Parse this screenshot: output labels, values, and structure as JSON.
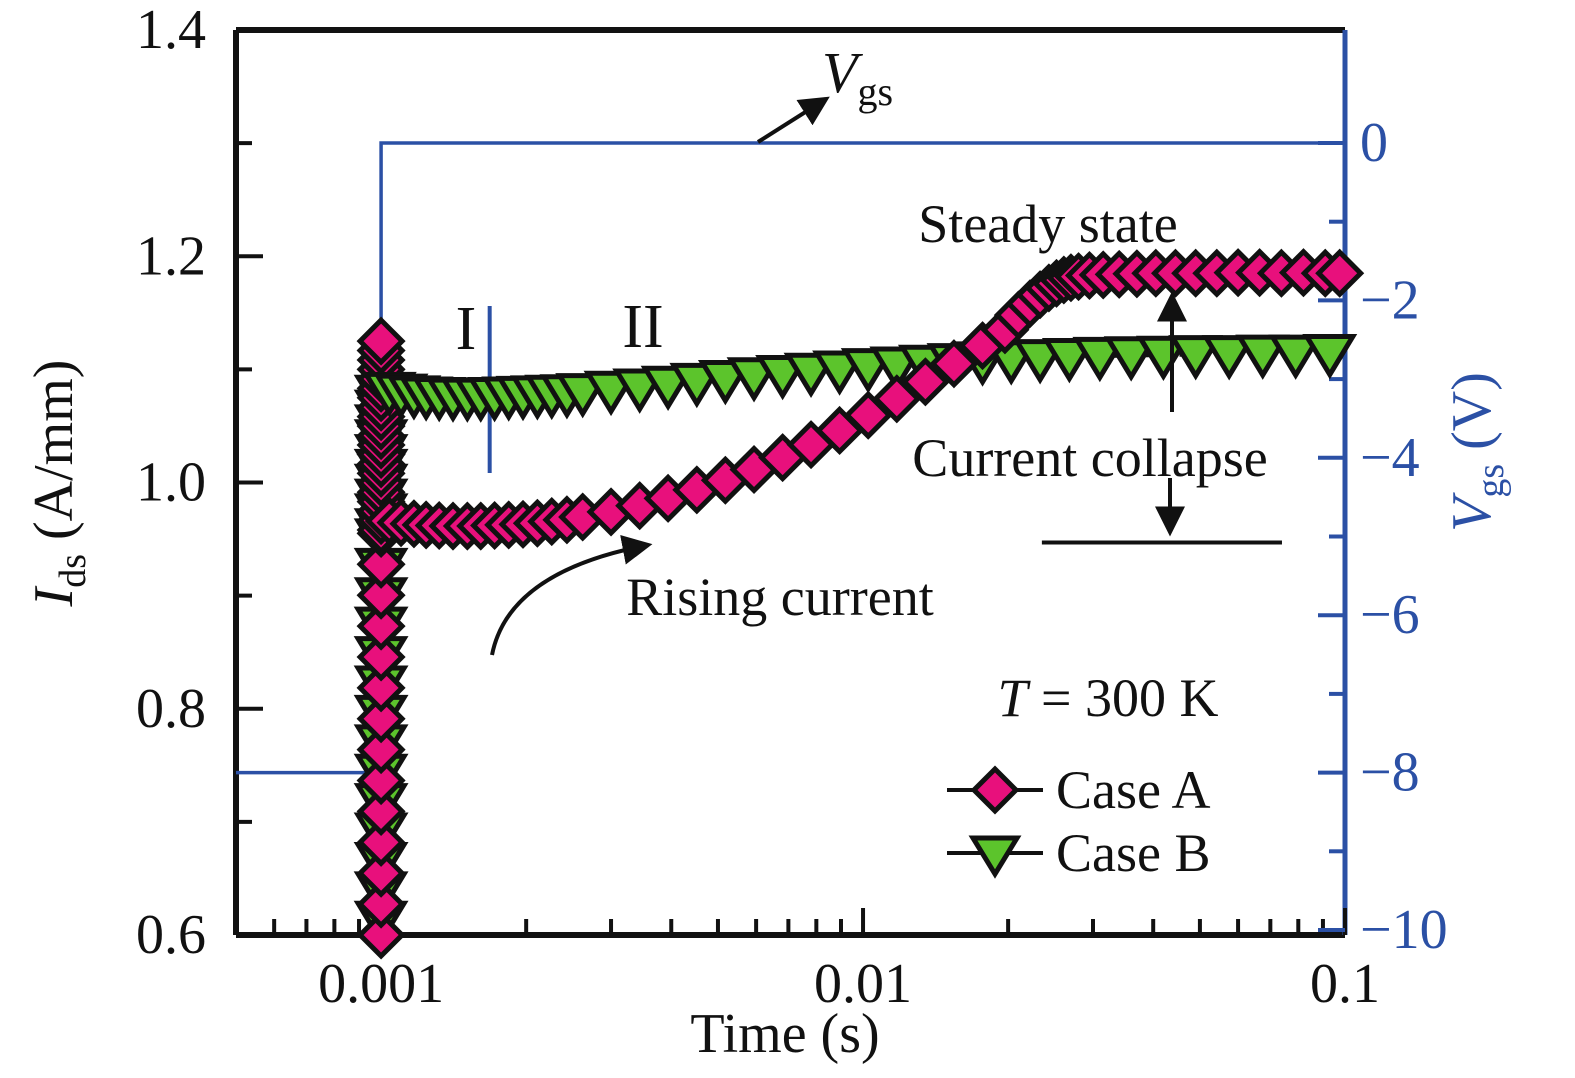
{
  "colors": {
    "case_a_pink": "#E8107C",
    "case_b_green": "#5CC42C",
    "vgs_blue": "#2B50A5",
    "line_black": "#111111",
    "background": "#FFFFFF"
  },
  "axes": {
    "x": {
      "label": "Time (s)",
      "scale": "log",
      "min": 0.0005,
      "max": 0.1,
      "major_ticks": [
        0.001,
        0.01,
        0.1
      ],
      "major_labels": [
        "0.001",
        "0.01",
        "0.1"
      ],
      "minor_ticks": [
        0.0006,
        0.0007,
        0.0008,
        0.0009,
        0.002,
        0.003,
        0.004,
        0.005,
        0.006,
        0.007,
        0.008,
        0.009,
        0.02,
        0.03,
        0.04,
        0.05,
        0.06,
        0.07,
        0.08,
        0.09
      ]
    },
    "y_left": {
      "label_var": "I",
      "label_sub": "ds",
      "label_rest": " (A/mm)",
      "min": 0.6,
      "max": 1.4,
      "major_ticks": [
        0.6,
        0.8,
        1.0,
        1.2,
        1.4
      ],
      "major_labels": [
        "0.6",
        "0.8",
        "1.0",
        "1.2",
        "1.4"
      ],
      "minor_ticks": [
        0.7,
        0.9,
        1.1,
        1.3
      ]
    },
    "y_right": {
      "label_var": "V",
      "label_sub": "gs",
      "label_rest": " (V)",
      "min": -10,
      "max": 0,
      "major_ticks": [
        0,
        -2,
        -4,
        -6,
        -8,
        -10
      ],
      "major_labels": [
        "0",
        "−2",
        "−4",
        "−6",
        "−8",
        "−10"
      ],
      "minor_ticks": [
        -1,
        -3,
        -5,
        -7,
        -9
      ]
    }
  },
  "chart_data": {
    "type": "line",
    "x_scale": "log",
    "x_range": [
      0.0005,
      0.1
    ],
    "y_left_range": [
      0.6,
      1.4
    ],
    "y_right_range": [
      -10,
      0
    ],
    "series": [
      {
        "name": "Case B",
        "axis": "left",
        "marker": "triangle-down",
        "color": "#5CC42C",
        "connector": "dashed",
        "transient_column": {
          "t": 0.001,
          "segments": [
            {
              "from": 0.613,
              "to": 0.951,
              "count": 14
            },
            {
              "from": 0.96,
              "to": 1.078,
              "count": 10
            }
          ]
        },
        "points": [
          [
            0.00104,
            1.0805
          ],
          [
            0.0011,
            1.079
          ],
          [
            0.00117,
            1.0775
          ],
          [
            0.00124,
            1.0765
          ],
          [
            0.00132,
            1.076
          ],
          [
            0.00141,
            1.0755
          ],
          [
            0.00151,
            1.0755
          ],
          [
            0.00161,
            1.0755
          ],
          [
            0.00172,
            1.076
          ],
          [
            0.00184,
            1.0765
          ],
          [
            0.00197,
            1.077
          ],
          [
            0.00211,
            1.0775
          ],
          [
            0.00226,
            1.078
          ],
          [
            0.00243,
            1.0785
          ],
          [
            0.00262,
            1.0795
          ],
          [
            0.003,
            1.0815
          ],
          [
            0.00344,
            1.0835
          ],
          [
            0.00394,
            1.086
          ],
          [
            0.00452,
            1.0885
          ],
          [
            0.00518,
            1.091
          ],
          [
            0.00594,
            1.0935
          ],
          [
            0.00681,
            1.0955
          ],
          [
            0.0078,
            1.0975
          ],
          [
            0.00894,
            1.0995
          ],
          [
            0.01025,
            1.1015
          ],
          [
            0.01175,
            1.103
          ],
          [
            0.01347,
            1.1045
          ],
          [
            0.01544,
            1.106
          ],
          [
            0.0177,
            1.1075
          ],
          [
            0.0203,
            1.1085
          ],
          [
            0.0233,
            1.1095
          ],
          [
            0.0268,
            1.1105
          ],
          [
            0.031,
            1.1115
          ],
          [
            0.036,
            1.112
          ],
          [
            0.042,
            1.1125
          ],
          [
            0.049,
            1.113
          ],
          [
            0.0575,
            1.113
          ],
          [
            0.0675,
            1.1135
          ],
          [
            0.079,
            1.1135
          ],
          [
            0.093,
            1.114
          ]
        ]
      },
      {
        "name": "Case A",
        "axis": "left",
        "marker": "diamond",
        "color": "#E8107C",
        "connector": "dashed",
        "transient_column": {
          "t": 0.001,
          "segments": [
            {
              "from": 0.6,
              "to": 0.955,
              "count": 14
            },
            {
              "from": 0.958,
              "to": 1.125,
              "count": 21
            }
          ]
        },
        "points": [
          [
            0.00104,
            0.966
          ],
          [
            0.0011,
            0.9645
          ],
          [
            0.00117,
            0.9635
          ],
          [
            0.00124,
            0.9625
          ],
          [
            0.00132,
            0.962
          ],
          [
            0.00141,
            0.9615
          ],
          [
            0.00151,
            0.9615
          ],
          [
            0.00161,
            0.9615
          ],
          [
            0.00172,
            0.962
          ],
          [
            0.00184,
            0.9625
          ],
          [
            0.00197,
            0.963
          ],
          [
            0.00211,
            0.964
          ],
          [
            0.00226,
            0.9655
          ],
          [
            0.00243,
            0.967
          ],
          [
            0.00262,
            0.9695
          ],
          [
            0.003,
            0.974
          ],
          [
            0.00344,
            0.9795
          ],
          [
            0.00394,
            0.986
          ],
          [
            0.00452,
            0.9935
          ],
          [
            0.00518,
            1.002
          ],
          [
            0.00594,
            1.0115
          ],
          [
            0.00681,
            1.022
          ],
          [
            0.0078,
            1.0335
          ],
          [
            0.00894,
            1.046
          ],
          [
            0.01025,
            1.0595
          ],
          [
            0.01175,
            1.074
          ],
          [
            0.01347,
            1.089
          ],
          [
            0.01544,
            1.105
          ],
          [
            0.0177,
            1.121
          ],
          [
            0.0197,
            1.135
          ],
          [
            0.021,
            1.148
          ],
          [
            0.0222,
            1.158
          ],
          [
            0.0233,
            1.166
          ],
          [
            0.0243,
            1.172
          ],
          [
            0.0252,
            1.176
          ],
          [
            0.0261,
            1.179
          ],
          [
            0.027,
            1.181
          ],
          [
            0.028,
            1.182
          ],
          [
            0.0295,
            1.183
          ],
          [
            0.0315,
            1.1835
          ],
          [
            0.034,
            1.184
          ],
          [
            0.037,
            1.1845
          ],
          [
            0.0405,
            1.185
          ],
          [
            0.0445,
            1.185
          ],
          [
            0.049,
            1.185
          ],
          [
            0.0542,
            1.185
          ],
          [
            0.06,
            1.1855
          ],
          [
            0.0665,
            1.1855
          ],
          [
            0.0738,
            1.185
          ],
          [
            0.082,
            1.1855
          ],
          [
            0.091,
            1.185
          ],
          [
            0.0975,
            1.185
          ]
        ]
      },
      {
        "name": "Vgs",
        "axis": "right",
        "marker": "none",
        "color": "#2B50A5",
        "connector": "solid",
        "points": [
          [
            0.0005,
            -8
          ],
          [
            0.001,
            -8
          ],
          [
            0.001,
            0
          ],
          [
            0.1,
            0
          ]
        ]
      }
    ],
    "region_divider_t": 0.00168,
    "collapse_level_line": {
      "t_from": 0.0235,
      "t_to": 0.074,
      "i": 0.947
    }
  },
  "annotations": {
    "vgs_label": {
      "var": "V",
      "sub": "gs"
    },
    "steady_state": "Steady state",
    "current_collapse": "Current collapse",
    "rising_current": "Rising current",
    "region_1": "I",
    "region_2": "II",
    "temperature": {
      "var": "T",
      "rest": " = 300 K"
    }
  },
  "legend": {
    "case_a": "Case A",
    "case_b": "Case B"
  }
}
